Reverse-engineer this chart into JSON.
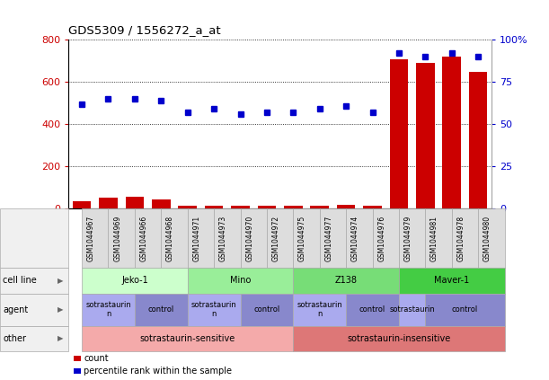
{
  "title": "GDS5309 / 1556272_a_at",
  "samples": [
    "GSM1044967",
    "GSM1044969",
    "GSM1044966",
    "GSM1044968",
    "GSM1044971",
    "GSM1044973",
    "GSM1044970",
    "GSM1044972",
    "GSM1044975",
    "GSM1044977",
    "GSM1044974",
    "GSM1044976",
    "GSM1044979",
    "GSM1044981",
    "GSM1044978",
    "GSM1044980"
  ],
  "counts": [
    35,
    50,
    55,
    45,
    15,
    15,
    12,
    12,
    12,
    15,
    20,
    15,
    710,
    690,
    720,
    650
  ],
  "percentile_ranks": [
    62,
    65,
    65,
    64,
    57,
    59,
    56,
    57,
    57,
    59,
    61,
    57,
    92,
    90,
    92,
    90
  ],
  "bar_color": "#cc0000",
  "dot_color": "#0000cc",
  "ylim_left": [
    0,
    800
  ],
  "ylim_right": [
    0,
    100
  ],
  "yticks_left": [
    0,
    200,
    400,
    600,
    800
  ],
  "yticks_right": [
    0,
    25,
    50,
    75,
    100
  ],
  "yticklabels_right": [
    "0",
    "25",
    "50",
    "75",
    "100%"
  ],
  "cell_lines": [
    {
      "label": "Jeko-1",
      "start": 0,
      "end": 4,
      "color": "#ccffcc"
    },
    {
      "label": "Mino",
      "start": 4,
      "end": 8,
      "color": "#99ee99"
    },
    {
      "label": "Z138",
      "start": 8,
      "end": 12,
      "color": "#77dd77"
    },
    {
      "label": "Maver-1",
      "start": 12,
      "end": 16,
      "color": "#44cc44"
    }
  ],
  "agents": [
    {
      "label": "sotrastaurin\nn",
      "start": 0,
      "end": 2,
      "color": "#aaaaee"
    },
    {
      "label": "control",
      "start": 2,
      "end": 4,
      "color": "#8888cc"
    },
    {
      "label": "sotrastaurin\nn",
      "start": 4,
      "end": 6,
      "color": "#aaaaee"
    },
    {
      "label": "control",
      "start": 6,
      "end": 8,
      "color": "#8888cc"
    },
    {
      "label": "sotrastaurin\nn",
      "start": 8,
      "end": 10,
      "color": "#aaaaee"
    },
    {
      "label": "control",
      "start": 10,
      "end": 12,
      "color": "#8888cc"
    },
    {
      "label": "sotrastaurin",
      "start": 12,
      "end": 13,
      "color": "#aaaaee"
    },
    {
      "label": "control",
      "start": 13,
      "end": 16,
      "color": "#8888cc"
    }
  ],
  "others": [
    {
      "label": "sotrastaurin-sensitive",
      "start": 0,
      "end": 8,
      "color": "#f4aaaa"
    },
    {
      "label": "sotrastaurin-insensitive",
      "start": 8,
      "end": 16,
      "color": "#dd7777"
    }
  ],
  "legend_items": [
    {
      "label": "count",
      "color": "#cc0000"
    },
    {
      "label": "percentile rank within the sample",
      "color": "#0000cc"
    }
  ],
  "background_color": "#ffffff",
  "border_color": "#aaaaaa",
  "label_bg_color": "#f0f0f0",
  "sample_box_color": "#dddddd"
}
